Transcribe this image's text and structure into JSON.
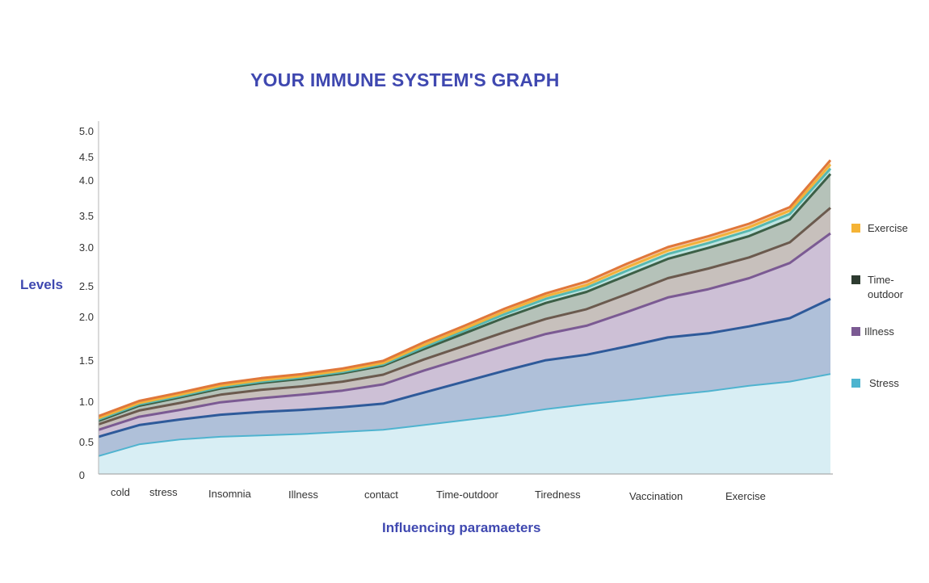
{
  "chart_data": {
    "type": "area",
    "stacked": true,
    "title": "YOUR IMMUNE SYSTEM'S GRAPH",
    "xlabel": "Influencing paramaeters",
    "ylabel": "Levels",
    "ylim": [
      0,
      5.0
    ],
    "yticks": [
      "5.0",
      "4.5",
      "4.0",
      "3.5",
      "3.0",
      "2.5",
      "2.0",
      "1.5",
      "1.0",
      "0.5",
      "0"
    ],
    "categories": [
      "cold",
      "stress",
      "Insomnia",
      "Illness",
      "contact",
      "Time-outdoor",
      "Tiredness",
      "Vaccination",
      "Exercise"
    ],
    "x": [
      0,
      0.5,
      1,
      1.5,
      2,
      2.5,
      3,
      3.5,
      4,
      4.5,
      5,
      5.5,
      6,
      6.5,
      7,
      7.5,
      8,
      8.5,
      9
    ],
    "series": [
      {
        "name": "Stress",
        "color": "#4fb3cf",
        "values": [
          0.26,
          0.43,
          0.5,
          0.54,
          0.56,
          0.58,
          0.61,
          0.64,
          0.71,
          0.78,
          0.85,
          0.94,
          1.01,
          1.07,
          1.14,
          1.2,
          1.28,
          1.34,
          1.45
        ]
      },
      {
        "name": "",
        "color": "#2e5a9a",
        "values": [
          0.28,
          0.28,
          0.29,
          0.32,
          0.34,
          0.35,
          0.36,
          0.38,
          0.47,
          0.56,
          0.65,
          0.71,
          0.72,
          0.78,
          0.84,
          0.84,
          0.86,
          0.92,
          1.09
        ]
      },
      {
        "name": "Illness",
        "color": "#7b5a93",
        "values": [
          0.1,
          0.12,
          0.14,
          0.18,
          0.2,
          0.22,
          0.24,
          0.28,
          0.32,
          0.34,
          0.36,
          0.38,
          0.42,
          0.5,
          0.58,
          0.64,
          0.7,
          0.8,
          0.95
        ]
      },
      {
        "name": "",
        "color": "#6b5a4e",
        "values": [
          0.08,
          0.09,
          0.1,
          0.11,
          0.12,
          0.12,
          0.13,
          0.14,
          0.16,
          0.18,
          0.2,
          0.22,
          0.24,
          0.26,
          0.28,
          0.3,
          0.3,
          0.3,
          0.37
        ]
      },
      {
        "name": "Time-outdoor",
        "color": "#3c5f46",
        "values": [
          0.05,
          0.07,
          0.08,
          0.09,
          0.1,
          0.11,
          0.12,
          0.13,
          0.15,
          0.18,
          0.21,
          0.23,
          0.25,
          0.27,
          0.28,
          0.3,
          0.31,
          0.33,
          0.49
        ]
      },
      {
        "name": "",
        "color": "#57b8b0",
        "values": [
          0.02,
          0.02,
          0.02,
          0.02,
          0.02,
          0.02,
          0.02,
          0.02,
          0.03,
          0.04,
          0.05,
          0.06,
          0.06,
          0.07,
          0.07,
          0.07,
          0.08,
          0.08,
          0.08
        ]
      },
      {
        "name": "Exercise",
        "color": "#f2b13a",
        "values": [
          0.02,
          0.02,
          0.02,
          0.02,
          0.02,
          0.02,
          0.02,
          0.02,
          0.03,
          0.03,
          0.04,
          0.04,
          0.04,
          0.05,
          0.05,
          0.05,
          0.05,
          0.05,
          0.06
        ]
      },
      {
        "name": "",
        "color": "#e0773a",
        "values": [
          0.03,
          0.03,
          0.03,
          0.03,
          0.03,
          0.03,
          0.03,
          0.03,
          0.04,
          0.04,
          0.04,
          0.04,
          0.05,
          0.05,
          0.05,
          0.05,
          0.05,
          0.05,
          0.06
        ]
      }
    ],
    "legend": {
      "position": "right"
    },
    "grid": false
  },
  "legend_items": [
    {
      "label": "Exercise",
      "color": "#f5b335"
    },
    {
      "label": "Time-\noutdoor",
      "color": "#2d3b30"
    },
    {
      "label": "Illness",
      "color": "#7b5a93"
    },
    {
      "label": "Stress",
      "color": "#4db4cf"
    }
  ]
}
